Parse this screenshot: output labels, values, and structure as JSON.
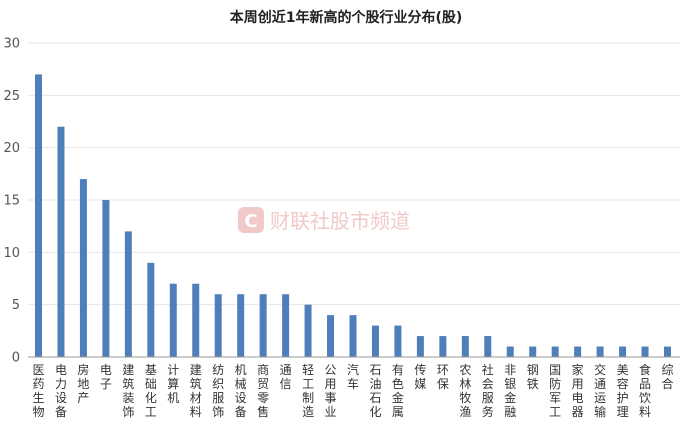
{
  "chart_data": {
    "type": "bar",
    "title": "本周创近1年新高的个股行业分布(股)",
    "xlabel": "",
    "ylabel": "",
    "ylim": [
      0,
      30
    ],
    "yticks": [
      0,
      5,
      10,
      15,
      20,
      25,
      30
    ],
    "grid": true,
    "categories": [
      "医药生物",
      "电力设备",
      "房地产",
      "电子",
      "建筑装饰",
      "基础化工",
      "计算机",
      "建筑材料",
      "纺织服饰",
      "机械设备",
      "商贸零售",
      "通信",
      "轻工制造",
      "公用事业",
      "汽车",
      "石油石化",
      "有色金属",
      "传媒",
      "环保",
      "农林牧渔",
      "社会服务",
      "非银金融",
      "钢铁",
      "国防军工",
      "家用电器",
      "交通运输",
      "美容护理",
      "食品饮料",
      "综合"
    ],
    "values": [
      27,
      22,
      17,
      15,
      12,
      9,
      7,
      7,
      6,
      6,
      6,
      6,
      5,
      4,
      4,
      3,
      3,
      2,
      2,
      2,
      2,
      1,
      1,
      1,
      1,
      1,
      1,
      1,
      1
    ],
    "bar_color": "#4f7fba"
  },
  "watermark": {
    "logo_letter": "C",
    "text": "财联社股市频道",
    "color": "#e8a0a0"
  }
}
